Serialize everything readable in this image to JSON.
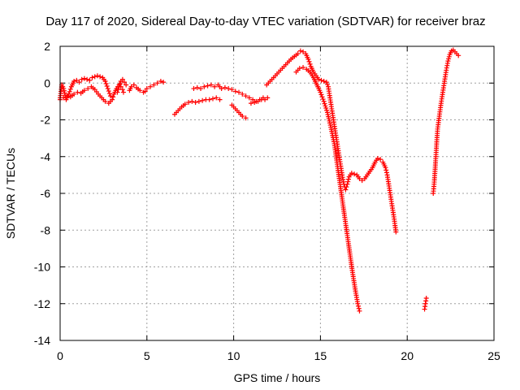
{
  "chart_data": {
    "type": "scatter",
    "title": "Day 117 of 2020, Sidereal Day-to-day VTEC variation (SDTVAR) for receiver braz",
    "xlabel": "GPS time / hours",
    "ylabel": "SDTVAR / TECUs",
    "xlim": [
      0,
      25
    ],
    "ylim": [
      -14,
      2
    ],
    "xticks": [
      0,
      5,
      10,
      15,
      20,
      25
    ],
    "yticks": [
      2,
      0,
      -2,
      -4,
      -6,
      -8,
      -10,
      -12,
      -14
    ],
    "grid": true,
    "marker": "+",
    "color": "#ff0000",
    "series": [
      {
        "name": "SDTVAR",
        "segments": [
          [
            [
              0,
              -0.8
            ],
            [
              0.1,
              -0.1
            ],
            [
              0.2,
              -0.3
            ],
            [
              0.35,
              -0.9
            ],
            [
              0.5,
              -0.6
            ],
            [
              0.65,
              -0.2
            ],
            [
              0.8,
              0.1
            ],
            [
              0.95,
              0.15
            ],
            [
              1.1,
              0.05
            ],
            [
              1.25,
              0.2
            ],
            [
              1.4,
              0.25
            ],
            [
              1.55,
              0.2
            ],
            [
              1.7,
              0.15
            ],
            [
              1.85,
              0.3
            ],
            [
              2.0,
              0.35
            ],
            [
              2.15,
              0.4
            ],
            [
              2.3,
              0.35
            ],
            [
              2.45,
              0.3
            ],
            [
              2.6,
              0.1
            ],
            [
              2.75,
              -0.3
            ],
            [
              2.9,
              -0.7
            ]
          ],
          [
            [
              0,
              -0.9
            ],
            [
              0.2,
              -0.8
            ],
            [
              0.4,
              -0.7
            ],
            [
              0.6,
              -0.75
            ],
            [
              0.8,
              -0.6
            ],
            [
              1.0,
              -0.5
            ],
            [
              1.2,
              -0.55
            ],
            [
              1.4,
              -0.4
            ],
            [
              1.6,
              -0.3
            ],
            [
              1.8,
              -0.2
            ],
            [
              2.0,
              -0.35
            ],
            [
              2.2,
              -0.6
            ],
            [
              2.4,
              -0.8
            ],
            [
              2.6,
              -1.0
            ],
            [
              2.8,
              -1.1
            ],
            [
              3.0,
              -0.9
            ],
            [
              3.1,
              -0.6
            ],
            [
              3.25,
              -0.3
            ],
            [
              3.4,
              -0.1
            ],
            [
              3.5,
              -0.2
            ],
            [
              3.6,
              -0.35
            ],
            [
              3.65,
              -0.5
            ]
          ],
          [
            [
              3.3,
              -0.5
            ],
            [
              3.4,
              -0.2
            ],
            [
              3.5,
              0.1
            ],
            [
              3.6,
              0.2
            ],
            [
              3.7,
              0.05
            ],
            [
              3.8,
              -0.1
            ]
          ],
          [
            [
              4.0,
              -0.4
            ],
            [
              4.1,
              -0.2
            ],
            [
              4.25,
              -0.1
            ],
            [
              4.4,
              -0.25
            ],
            [
              4.6,
              -0.4
            ],
            [
              4.8,
              -0.5
            ],
            [
              4.9,
              -0.45
            ],
            [
              5.0,
              -0.3
            ],
            [
              5.2,
              -0.2
            ],
            [
              5.4,
              -0.1
            ],
            [
              5.6,
              0.0
            ],
            [
              5.8,
              0.1
            ],
            [
              5.95,
              0.05
            ]
          ],
          [
            [
              6.6,
              -1.7
            ],
            [
              6.8,
              -1.5
            ],
            [
              7.0,
              -1.3
            ],
            [
              7.2,
              -1.15
            ],
            [
              7.4,
              -1.05
            ],
            [
              7.6,
              -1.0
            ],
            [
              7.8,
              -1.05
            ],
            [
              8.0,
              -1.0
            ],
            [
              8.2,
              -0.95
            ],
            [
              8.4,
              -0.9
            ],
            [
              8.6,
              -0.9
            ],
            [
              8.8,
              -0.85
            ],
            [
              9.0,
              -0.8
            ],
            [
              9.2,
              -0.9
            ]
          ],
          [
            [
              7.7,
              -0.3
            ],
            [
              7.9,
              -0.25
            ],
            [
              8.1,
              -0.3
            ],
            [
              8.3,
              -0.2
            ],
            [
              8.5,
              -0.15
            ],
            [
              8.7,
              -0.1
            ],
            [
              8.9,
              -0.2
            ],
            [
              9.1,
              -0.1
            ],
            [
              9.3,
              -0.3
            ],
            [
              9.5,
              -0.25
            ],
            [
              9.7,
              -0.3
            ],
            [
              9.9,
              -0.35
            ],
            [
              10.1,
              -0.45
            ],
            [
              10.3,
              -0.5
            ],
            [
              10.5,
              -0.6
            ],
            [
              10.7,
              -0.7
            ],
            [
              10.9,
              -0.8
            ],
            [
              11.1,
              -0.9
            ],
            [
              11.3,
              -1.0
            ],
            [
              11.5,
              -0.9
            ],
            [
              11.7,
              -0.8
            ]
          ],
          [
            [
              9.9,
              -1.2
            ],
            [
              10.1,
              -1.4
            ],
            [
              10.3,
              -1.6
            ],
            [
              10.5,
              -1.8
            ],
            [
              10.7,
              -1.9
            ]
          ],
          [
            [
              11.0,
              -1.1
            ],
            [
              11.2,
              -1.05
            ],
            [
              11.4,
              -1.0
            ],
            [
              11.6,
              -0.9
            ],
            [
              11.8,
              -0.9
            ],
            [
              11.95,
              -0.8
            ]
          ],
          [
            [
              11.9,
              -0.1
            ],
            [
              12.1,
              0.1
            ],
            [
              12.3,
              0.3
            ],
            [
              12.5,
              0.5
            ],
            [
              12.7,
              0.7
            ],
            [
              12.9,
              0.9
            ],
            [
              13.1,
              1.1
            ],
            [
              13.3,
              1.3
            ],
            [
              13.5,
              1.45
            ],
            [
              13.7,
              1.6
            ],
            [
              13.85,
              1.75
            ],
            [
              14.0,
              1.7
            ],
            [
              14.15,
              1.6
            ],
            [
              14.3,
              1.3
            ],
            [
              14.45,
              0.9
            ],
            [
              14.6,
              0.6
            ],
            [
              14.75,
              0.4
            ],
            [
              14.9,
              0.2
            ],
            [
              15.05,
              0.15
            ],
            [
              15.2,
              0.1
            ],
            [
              15.35,
              0.05
            ],
            [
              15.45,
              -0.2
            ],
            [
              15.55,
              -0.8
            ],
            [
              15.65,
              -1.4
            ],
            [
              15.75,
              -2.0
            ],
            [
              15.85,
              -2.6
            ],
            [
              15.95,
              -3.2
            ],
            [
              16.05,
              -3.8
            ],
            [
              16.15,
              -4.4
            ],
            [
              16.25,
              -5.0
            ],
            [
              16.35,
              -5.5
            ],
            [
              16.45,
              -5.8
            ],
            [
              16.55,
              -5.5
            ],
            [
              16.65,
              -5.1
            ],
            [
              16.8,
              -4.9
            ],
            [
              16.95,
              -4.95
            ],
            [
              17.1,
              -5.0
            ],
            [
              17.25,
              -5.2
            ],
            [
              17.4,
              -5.3
            ],
            [
              17.55,
              -5.2
            ],
            [
              17.7,
              -5.0
            ],
            [
              17.85,
              -4.8
            ],
            [
              18.0,
              -4.6
            ],
            [
              18.15,
              -4.3
            ],
            [
              18.3,
              -4.1
            ],
            [
              18.45,
              -4.15
            ],
            [
              18.6,
              -4.3
            ],
            [
              18.75,
              -4.6
            ],
            [
              18.85,
              -5.0
            ],
            [
              18.95,
              -5.6
            ],
            [
              19.05,
              -6.2
            ],
            [
              19.15,
              -6.8
            ],
            [
              19.25,
              -7.4
            ],
            [
              19.35,
              -8.1
            ]
          ],
          [
            [
              13.6,
              0.6
            ],
            [
              13.8,
              0.8
            ],
            [
              14.0,
              0.85
            ],
            [
              14.2,
              0.75
            ],
            [
              14.4,
              0.6
            ],
            [
              14.6,
              0.3
            ],
            [
              14.8,
              -0.1
            ],
            [
              15.0,
              -0.5
            ],
            [
              15.2,
              -1.0
            ],
            [
              15.4,
              -1.6
            ],
            [
              15.6,
              -2.4
            ],
            [
              15.8,
              -3.3
            ],
            [
              15.95,
              -4.3
            ],
            [
              16.1,
              -5.3
            ],
            [
              16.25,
              -6.3
            ],
            [
              16.4,
              -7.3
            ],
            [
              16.55,
              -8.3
            ],
            [
              16.7,
              -9.3
            ],
            [
              16.85,
              -10.3
            ],
            [
              17.0,
              -11.2
            ],
            [
              17.15,
              -12.0
            ],
            [
              17.25,
              -12.4
            ]
          ],
          [
            [
              21.0,
              -12.3
            ],
            [
              21.05,
              -12.0
            ],
            [
              21.1,
              -11.7
            ]
          ],
          [
            [
              21.5,
              -6.0
            ],
            [
              21.55,
              -5.5
            ],
            [
              21.6,
              -4.8
            ],
            [
              21.65,
              -4.0
            ],
            [
              21.7,
              -3.2
            ],
            [
              21.75,
              -2.5
            ],
            [
              21.85,
              -1.8
            ],
            [
              21.95,
              -1.1
            ],
            [
              22.05,
              -0.5
            ],
            [
              22.15,
              0.1
            ],
            [
              22.25,
              0.7
            ],
            [
              22.35,
              1.2
            ],
            [
              22.45,
              1.55
            ],
            [
              22.55,
              1.75
            ],
            [
              22.65,
              1.8
            ],
            [
              22.75,
              1.7
            ],
            [
              22.85,
              1.6
            ],
            [
              22.95,
              1.5
            ]
          ]
        ]
      }
    ]
  }
}
